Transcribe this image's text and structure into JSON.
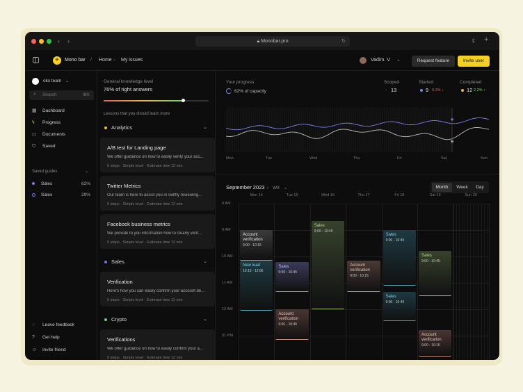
{
  "browser": {
    "url": "Monobar.pro"
  },
  "header": {
    "app_name": "Mono bar",
    "separator": "/",
    "breadcrumb": [
      "Home",
      "My issues"
    ],
    "user_name": "Vadim. V",
    "request_feature": "Request feature",
    "invite_user": "Invite user"
  },
  "sidebar": {
    "team": "okx team",
    "search_placeholder": "Search",
    "search_shortcut": "⌘K",
    "nav": [
      {
        "label": "Dashboard",
        "icon": "grid-icon"
      },
      {
        "label": "Progress",
        "icon": "bolt-icon"
      },
      {
        "label": "Documents",
        "icon": "folder-icon"
      },
      {
        "label": "Saved",
        "icon": "bookmark-icon"
      }
    ],
    "saved_guides_title": "Saved guides",
    "guides": [
      {
        "label": "Sales",
        "value": "62%"
      },
      {
        "label": "Sales",
        "value": "29%"
      }
    ],
    "footer": [
      "Leave feedback",
      "Get help",
      "Invite friend"
    ]
  },
  "lessons": {
    "knowledge_label": "General knowledge level",
    "knowledge_value": "76% of right answers",
    "knowledge_fraction": 0.76,
    "learn_more": "Lessons that you should learn more",
    "sections": [
      {
        "name": "Analytics",
        "color": "#e8b64c",
        "cards": [
          {
            "title": "A/B test for Landing page",
            "desc": "We offer guidance on how to easily verify your acc...",
            "meta": "9 steps  ·  Simple level  ·  Estimate time 12 min"
          },
          {
            "title": "Twitter Metrics",
            "desc": "Our team is here to assist you in swiftly reviewing...",
            "meta": "9 steps  ·  Simple level  ·  Estimate time 12 min"
          },
          {
            "title": "Facebook business metrics",
            "desc": "We provide to you information how to clearly verif...",
            "meta": "9 steps  ·  Simple level  ·  Estimate time 12 min"
          }
        ]
      },
      {
        "name": "Sales",
        "color": "#6f73e0",
        "cards": [
          {
            "title": "Verification",
            "desc": "Here's how you can easily confirm your account de...",
            "meta": "9 steps  ·  Simple level  ·  Estimate time 12 min"
          }
        ]
      },
      {
        "name": "Crypto",
        "color": "#6fcf6f",
        "cards": [
          {
            "title": "Verifications",
            "desc": "We offer guidance on how to easily confirm your a...",
            "meta": "9 steps  ·  Simple level  ·  Estimate time 12 min"
          }
        ]
      }
    ]
  },
  "progress": {
    "title": "Your progress",
    "capacity": "62% of capacity",
    "stats": [
      {
        "label": "Scoped",
        "value": "13",
        "delta": "",
        "delta_color": ""
      },
      {
        "label": "Started",
        "value": "9",
        "delta": "0.2% ↓",
        "delta_color": "#e0655e"
      },
      {
        "label": "Completed",
        "value": "12",
        "delta": "2.2% ↑",
        "delta_color": "#8ad06f"
      }
    ],
    "days": [
      "Mon",
      "Tue",
      "Wed",
      "Thu",
      "Fri",
      "Sat",
      "Sun"
    ]
  },
  "chart_data": {
    "type": "line",
    "x": [
      "Mon",
      "Tue",
      "Wed",
      "Thu",
      "Fri",
      "Sat",
      "Sun"
    ],
    "series": [
      {
        "color": "#7c80f0",
        "values": [
          0.48,
          0.5,
          0.53,
          0.55,
          0.58,
          0.6,
          0.66
        ]
      },
      {
        "color": "#bdbdbd",
        "values": [
          0.36,
          0.4,
          0.32,
          0.45,
          0.36,
          0.3,
          0.5
        ]
      }
    ],
    "ylim": [
      0,
      1
    ],
    "grid": false
  },
  "calendar": {
    "month": "September 2023",
    "week": "W9",
    "views": [
      "Month",
      "Week",
      "Day"
    ],
    "active_view": "Month",
    "days": [
      "Mon 14",
      "Tue 15",
      "Wed 16",
      "Thu 17",
      "Fri 18",
      "Sat 19",
      "Sun 20"
    ],
    "hours": [
      "8 AM",
      "9 AM",
      "10 AM",
      "11 AM",
      "12 AM",
      "01 PM"
    ],
    "events": [
      {
        "title": "Account verification",
        "time": "9:00 - 10:15",
        "day": 0,
        "start": 9.0,
        "end": 10.15,
        "bg": "#3a3a3a",
        "fg": "#e6e6e6",
        "line": "#9a9a9a"
      },
      {
        "title": "New lead",
        "time": "10:15 - 12:06",
        "day": 0,
        "start": 10.15,
        "end": 12.06,
        "bg": "#1d3a42",
        "fg": "#7ecfe0",
        "line": "#4fa6b8"
      },
      {
        "title": "Sales",
        "time": "9:00 - 10:45",
        "day": 1,
        "start": 10.2,
        "end": 11.35,
        "bg": "#3a3a5a",
        "fg": "#b9bcf5",
        "line": "#8c90e8"
      },
      {
        "title": "Account verification",
        "time": "9:00 - 10:45",
        "day": 1,
        "start": 12.0,
        "end": 13.15,
        "bg": "#4a3633",
        "fg": "#e8c4b8",
        "line": "#c78c7c"
      },
      {
        "title": "Sales",
        "time": "9:00 - 10:45",
        "day": 2,
        "start": 8.65,
        "end": 12.0,
        "bg": "#37422c",
        "fg": "#b8d88a",
        "line": "#9ac06a"
      },
      {
        "title": "Account verification",
        "time": "9:00 - 10:15",
        "day": 3,
        "start": 10.15,
        "end": 11.35,
        "bg": "#4a3a35",
        "fg": "#e8c4b8",
        "line": "#c78c7c"
      },
      {
        "title": "Sales",
        "time": "9:00 - 10:45",
        "day": 4,
        "start": 9.0,
        "end": 11.1,
        "bg": "#1d3a42",
        "fg": "#7ecfe0",
        "line": "#4fa6b8"
      },
      {
        "title": "Sales",
        "time": "9:00 - 10:45",
        "day": 4,
        "start": 11.35,
        "end": 12.45,
        "bg": "#1d3a42",
        "fg": "#7ecfe0",
        "line": "#4fa6b8"
      },
      {
        "title": "Sales",
        "time": "9:00 - 10:45",
        "day": 5,
        "start": 9.8,
        "end": 11.5,
        "bg": "#37422c",
        "fg": "#b8d88a",
        "line": "#9ac06a"
      },
      {
        "title": "Account verification",
        "time": "9:00 - 10:15",
        "day": 5,
        "start": 12.8,
        "end": 13.8,
        "bg": "#4a3633",
        "fg": "#e8c4b8",
        "line": "#c78c7c"
      }
    ]
  }
}
